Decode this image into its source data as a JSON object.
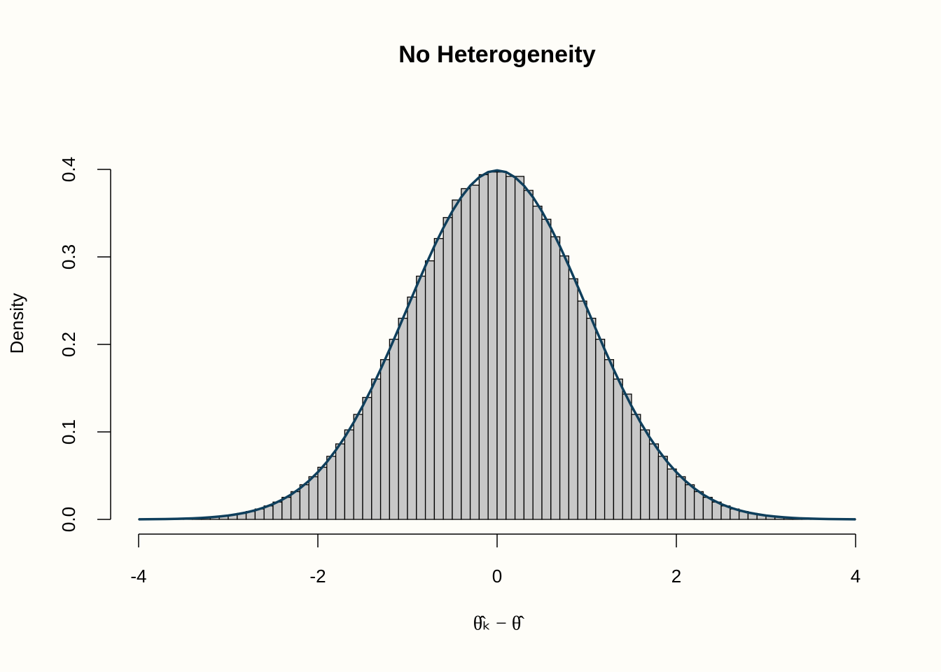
{
  "chart_data": {
    "type": "histogram",
    "title": "No Heterogeneity",
    "x_label": "θ̂ₖ − θ̂",
    "y_label": "Density",
    "bins": [
      -4.0,
      -3.9,
      -3.8,
      -3.7,
      -3.6,
      -3.5,
      -3.4,
      -3.3,
      -3.2,
      -3.1,
      -3.0,
      -2.9,
      -2.8,
      -2.7,
      -2.6,
      -2.5,
      -2.4,
      -2.3,
      -2.2,
      -2.1,
      -2.0,
      -1.9,
      -1.8,
      -1.7,
      -1.6,
      -1.5,
      -1.4,
      -1.3,
      -1.2,
      -1.1,
      -1.0,
      -0.9,
      -0.8,
      -0.7,
      -0.6,
      -0.5,
      -0.4,
      -0.3,
      -0.2,
      -0.1,
      0.0,
      0.1,
      0.2,
      0.3,
      0.4,
      0.5,
      0.6,
      0.7,
      0.8,
      0.9,
      1.0,
      1.1,
      1.2,
      1.3,
      1.4,
      1.5,
      1.6,
      1.7,
      1.8,
      1.9,
      2.0,
      2.1,
      2.2,
      2.3,
      2.4,
      2.5,
      2.6,
      2.7,
      2.8,
      2.9,
      3.0,
      3.1,
      3.2,
      3.3,
      3.4,
      3.5,
      3.6,
      3.7,
      3.8,
      3.9,
      4.0
    ],
    "values": [
      0.0002,
      0.0002,
      0.0004,
      0.0005,
      0.0007,
      0.001,
      0.0015,
      0.002,
      0.0028,
      0.0038,
      0.0051,
      0.0069,
      0.0091,
      0.0119,
      0.0154,
      0.0198,
      0.0252,
      0.0317,
      0.0396,
      0.0488,
      0.0596,
      0.0721,
      0.0863,
      0.1023,
      0.12,
      0.1394,
      0.1604,
      0.1826,
      0.2059,
      0.2299,
      0.2541,
      0.278,
      0.2955,
      0.321,
      0.345,
      0.365,
      0.378,
      0.382,
      0.394,
      0.397,
      0.397,
      0.392,
      0.392,
      0.376,
      0.358,
      0.343,
      0.323,
      0.3011,
      0.275,
      0.2495,
      0.2299,
      0.2059,
      0.1826,
      0.1604,
      0.1432,
      0.12,
      0.1023,
      0.0863,
      0.0721,
      0.0576,
      0.0488,
      0.0396,
      0.0317,
      0.0252,
      0.0198,
      0.0154,
      0.0119,
      0.0091,
      0.0069,
      0.0051,
      0.0038,
      0.0028,
      0.002,
      0.0015,
      0.001,
      0.0007,
      0.0005,
      0.0004,
      0.0002,
      0.0002
    ],
    "color": "#c8c8c8",
    "curve": {
      "color": "#0f3f5c",
      "x": [
        -4.0,
        -3.9,
        -3.8,
        -3.7,
        -3.6,
        -3.5,
        -3.4,
        -3.3,
        -3.2,
        -3.1,
        -3.0,
        -2.9,
        -2.8,
        -2.7,
        -2.6,
        -2.5,
        -2.4,
        -2.3,
        -2.2,
        -2.1,
        -2.0,
        -1.9,
        -1.8,
        -1.7,
        -1.6,
        -1.5,
        -1.4,
        -1.3,
        -1.2,
        -1.1,
        -1.0,
        -0.9,
        -0.8,
        -0.7,
        -0.6,
        -0.5,
        -0.4,
        -0.3,
        -0.2,
        -0.1,
        0.0,
        0.1,
        0.2,
        0.3,
        0.4,
        0.5,
        0.6,
        0.7,
        0.8,
        0.9,
        1.0,
        1.1,
        1.2,
        1.3,
        1.4,
        1.5,
        1.6,
        1.7,
        1.8,
        1.9,
        2.0,
        2.1,
        2.2,
        2.3,
        2.4,
        2.5,
        2.6,
        2.7,
        2.8,
        2.9,
        3.0,
        3.1,
        3.2,
        3.3,
        3.4,
        3.5,
        3.6,
        3.7,
        3.8,
        3.9,
        4.0
      ],
      "values": [
        0.0001,
        0.0002,
        0.0003,
        0.0004,
        0.0006,
        0.0009,
        0.0012,
        0.0017,
        0.0024,
        0.0033,
        0.0044,
        0.006,
        0.0079,
        0.0104,
        0.0136,
        0.0175,
        0.0224,
        0.0283,
        0.0355,
        0.044,
        0.054,
        0.0656,
        0.079,
        0.094,
        0.1109,
        0.1295,
        0.1497,
        0.1714,
        0.1942,
        0.2179,
        0.242,
        0.2661,
        0.2897,
        0.3123,
        0.3332,
        0.3521,
        0.3683,
        0.3814,
        0.391,
        0.397,
        0.3989,
        0.397,
        0.391,
        0.3814,
        0.3683,
        0.3521,
        0.3332,
        0.3123,
        0.2897,
        0.2661,
        0.242,
        0.2179,
        0.1942,
        0.1714,
        0.1497,
        0.1295,
        0.1109,
        0.094,
        0.079,
        0.0656,
        0.054,
        0.044,
        0.0355,
        0.0283,
        0.0224,
        0.0175,
        0.0136,
        0.0104,
        0.0079,
        0.006,
        0.0044,
        0.0033,
        0.0024,
        0.0017,
        0.0012,
        0.0009,
        0.0006,
        0.0004,
        0.0003,
        0.0002,
        0.0001
      ]
    },
    "xlim": [
      -4.32,
      4.32
    ],
    "xticks": [
      -4,
      -2,
      0,
      2,
      4
    ],
    "ylim": [
      -0.016,
      0.416
    ],
    "yticks": [
      0.0,
      0.1,
      0.2,
      0.3,
      0.4
    ]
  }
}
